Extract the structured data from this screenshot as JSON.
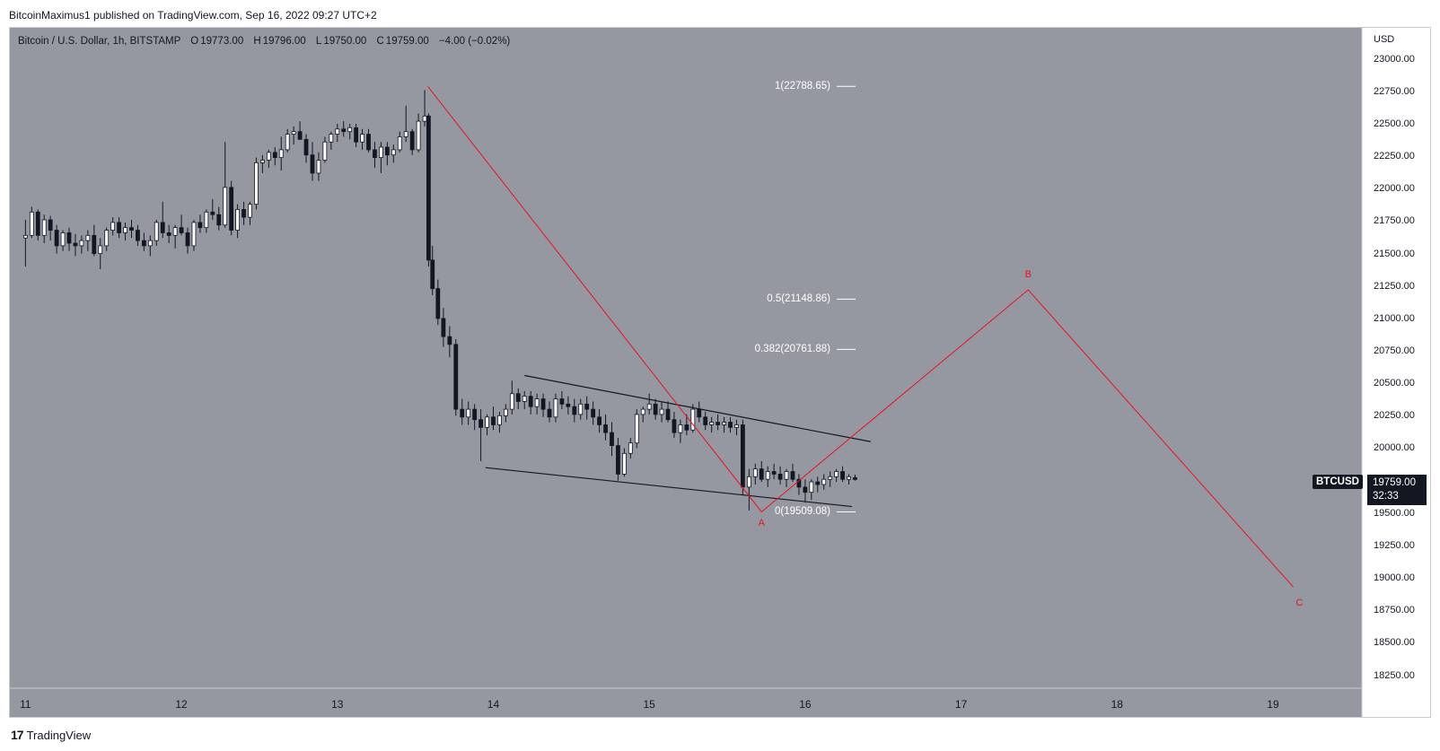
{
  "header": {
    "published_line": "BitcoinMaximus1 published on TradingView.com, Sep 16, 2022 09:27 UTC+2"
  },
  "legend": {
    "symbol_desc": "Bitcoin / U.S. Dollar, 1h, BITSTAMP",
    "o_label": "O",
    "o_value": "19773.00",
    "h_label": "H",
    "h_value": "19796.00",
    "l_label": "L",
    "l_value": "19750.00",
    "c_label": "C",
    "c_value": "19759.00",
    "change": "−4.00 (−0.02%)"
  },
  "colors": {
    "background": "#9598a1",
    "line": "#e8141f",
    "fib": "#ffffff",
    "candle_up": "#ffffff",
    "candle_down": "#131722"
  },
  "chart_data": {
    "type": "candlestick",
    "y_axis": {
      "unit": "USD",
      "ticks": [
        "23000.00",
        "22750.00",
        "22500.00",
        "22250.00",
        "22000.00",
        "21750.00",
        "21500.00",
        "21250.00",
        "21000.00",
        "20750.00",
        "20500.00",
        "20250.00",
        "20000.00",
        "19750.00",
        "19500.00",
        "19250.00",
        "19000.00",
        "18750.00",
        "18500.00",
        "18250.00"
      ],
      "range": [
        18150,
        23240
      ]
    },
    "x_axis": {
      "ticks": [
        "11",
        "12",
        "13",
        "14",
        "15",
        "16",
        "17",
        "18",
        "19"
      ],
      "range_days": [
        10.9,
        19.57
      ]
    },
    "last_price": {
      "symbol": "BTCUSD",
      "price": "19759.00",
      "countdown": "32:33"
    },
    "fib_levels": [
      {
        "ratio": 1,
        "label": "1(22788.65)",
        "price": 22788.65
      },
      {
        "ratio": 0.5,
        "label": "0.5(21148.86)",
        "price": 21148.86
      },
      {
        "ratio": 0.382,
        "label": "0.382(20761.88)",
        "price": 20761.88
      },
      {
        "ratio": 0,
        "label": "0(19509.08)",
        "price": 19509.08
      }
    ],
    "wave_path": [
      {
        "day": 13.58,
        "price": 22788
      },
      {
        "day": 15.72,
        "price": 19509
      },
      {
        "day": 17.43,
        "price": 21220
      },
      {
        "day": 19.13,
        "price": 18930
      }
    ],
    "wave_labels": [
      {
        "text": "A",
        "day": 15.72,
        "price": 19420
      },
      {
        "text": "B",
        "day": 17.43,
        "price": 21340
      },
      {
        "text": "C",
        "day": 19.17,
        "price": 18810
      }
    ],
    "channel_lines": [
      {
        "from": {
          "day": 14.2,
          "price": 20560
        },
        "to": {
          "day": 16.42,
          "price": 20050
        }
      },
      {
        "from": {
          "day": 13.95,
          "price": 19850
        },
        "to": {
          "day": 16.3,
          "price": 19550
        }
      }
    ],
    "candles": [
      [
        11.0,
        21620,
        21760,
        21400,
        21640
      ],
      [
        11.04,
        21640,
        21860,
        21620,
        21820
      ],
      [
        11.08,
        21820,
        21840,
        21600,
        21640
      ],
      [
        11.12,
        21640,
        21800,
        21580,
        21760
      ],
      [
        11.16,
        21760,
        21790,
        21600,
        21680
      ],
      [
        11.2,
        21680,
        21720,
        21500,
        21560
      ],
      [
        11.24,
        21560,
        21680,
        21520,
        21660
      ],
      [
        11.28,
        21660,
        21700,
        21520,
        21580
      ],
      [
        11.32,
        21580,
        21650,
        21480,
        21560
      ],
      [
        11.36,
        21560,
        21640,
        21500,
        21600
      ],
      [
        11.4,
        21600,
        21680,
        21520,
        21640
      ],
      [
        11.44,
        21640,
        21720,
        21480,
        21500
      ],
      [
        11.48,
        21500,
        21620,
        21380,
        21560
      ],
      [
        11.52,
        21560,
        21700,
        21520,
        21680
      ],
      [
        11.56,
        21680,
        21780,
        21640,
        21740
      ],
      [
        11.6,
        21740,
        21780,
        21620,
        21660
      ],
      [
        11.64,
        21660,
        21740,
        21600,
        21700
      ],
      [
        11.68,
        21700,
        21760,
        21620,
        21680
      ],
      [
        11.72,
        21680,
        21720,
        21560,
        21600
      ],
      [
        11.76,
        21600,
        21660,
        21520,
        21560
      ],
      [
        11.8,
        21560,
        21640,
        21480,
        21600
      ],
      [
        11.84,
        21600,
        21760,
        21560,
        21740
      ],
      [
        11.88,
        21740,
        21900,
        21620,
        21660
      ],
      [
        11.92,
        21660,
        21720,
        21580,
        21640
      ],
      [
        11.96,
        21640,
        21720,
        21540,
        21700
      ],
      [
        12.0,
        21700,
        21800,
        21640,
        21660
      ],
      [
        12.04,
        21660,
        21700,
        21500,
        21560
      ],
      [
        12.08,
        21560,
        21760,
        21520,
        21740
      ],
      [
        12.12,
        21740,
        21800,
        21660,
        21700
      ],
      [
        12.16,
        21700,
        21840,
        21660,
        21820
      ],
      [
        12.2,
        21820,
        21920,
        21760,
        21800
      ],
      [
        12.24,
        21800,
        21860,
        21680,
        21720
      ],
      [
        12.28,
        21720,
        22360,
        21700,
        22010
      ],
      [
        12.32,
        22010,
        22060,
        21640,
        21680
      ],
      [
        12.36,
        21680,
        21880,
        21620,
        21840
      ],
      [
        12.4,
        21840,
        21900,
        21720,
        21780
      ],
      [
        12.44,
        21780,
        21900,
        21720,
        21880
      ],
      [
        12.48,
        21880,
        22240,
        21840,
        22200
      ],
      [
        12.52,
        22200,
        22260,
        22120,
        22220
      ],
      [
        12.56,
        22220,
        22300,
        22160,
        22280
      ],
      [
        12.6,
        22280,
        22320,
        22180,
        22240
      ],
      [
        12.64,
        22240,
        22400,
        22140,
        22300
      ],
      [
        12.68,
        22300,
        22460,
        22280,
        22420
      ],
      [
        12.72,
        22420,
        22480,
        22340,
        22440
      ],
      [
        12.76,
        22440,
        22520,
        22400,
        22380
      ],
      [
        12.8,
        22380,
        22420,
        22200,
        22260
      ],
      [
        12.84,
        22260,
        22360,
        22060,
        22120
      ],
      [
        12.88,
        22120,
        22280,
        22060,
        22220
      ],
      [
        12.92,
        22220,
        22400,
        22200,
        22360
      ],
      [
        12.96,
        22360,
        22440,
        22300,
        22420
      ],
      [
        13.0,
        22420,
        22500,
        22360,
        22460
      ],
      [
        13.04,
        22460,
        22520,
        22400,
        22440
      ],
      [
        13.08,
        22440,
        22500,
        22380,
        22470
      ],
      [
        13.12,
        22470,
        22500,
        22320,
        22360
      ],
      [
        13.16,
        22360,
        22460,
        22300,
        22420
      ],
      [
        13.2,
        22420,
        22460,
        22280,
        22300
      ],
      [
        13.24,
        22300,
        22360,
        22160,
        22240
      ],
      [
        13.28,
        22240,
        22360,
        22120,
        22320
      ],
      [
        13.32,
        22320,
        22360,
        22180,
        22260
      ],
      [
        13.36,
        22260,
        22340,
        22200,
        22300
      ],
      [
        13.4,
        22300,
        22440,
        22280,
        22400
      ],
      [
        13.44,
        22400,
        22640,
        22360,
        22440
      ],
      [
        13.48,
        22440,
        22460,
        22260,
        22300
      ],
      [
        13.52,
        22300,
        22580,
        22280,
        22520
      ],
      [
        13.56,
        22520,
        22760,
        22480,
        22560
      ],
      [
        13.585,
        22560,
        22580,
        21400,
        21450
      ],
      [
        13.61,
        21450,
        21560,
        21180,
        21230
      ],
      [
        13.645,
        21230,
        21300,
        20950,
        21000
      ],
      [
        13.68,
        21000,
        21080,
        20780,
        20860
      ],
      [
        13.72,
        20860,
        20940,
        20700,
        20800
      ],
      [
        13.76,
        20800,
        20840,
        20250,
        20300
      ],
      [
        13.8,
        20300,
        20380,
        20180,
        20240
      ],
      [
        13.84,
        20240,
        20360,
        20180,
        20300
      ],
      [
        13.88,
        20300,
        20340,
        20140,
        20220
      ],
      [
        13.92,
        20220,
        20300,
        19900,
        20160
      ],
      [
        13.96,
        20160,
        20260,
        20100,
        20240
      ],
      [
        14.0,
        20240,
        20320,
        20140,
        20180
      ],
      [
        14.04,
        20180,
        20280,
        20120,
        20250
      ],
      [
        14.08,
        20250,
        20340,
        20200,
        20300
      ],
      [
        14.12,
        20300,
        20520,
        20260,
        20420
      ],
      [
        14.16,
        20420,
        20460,
        20300,
        20360
      ],
      [
        14.2,
        20360,
        20440,
        20300,
        20400
      ],
      [
        14.24,
        20400,
        20440,
        20260,
        20320
      ],
      [
        14.28,
        20320,
        20420,
        20260,
        20380
      ],
      [
        14.32,
        20380,
        20420,
        20240,
        20300
      ],
      [
        14.36,
        20300,
        20360,
        20200,
        20240
      ],
      [
        14.4,
        20240,
        20420,
        20200,
        20380
      ],
      [
        14.44,
        20380,
        20440,
        20300,
        20340
      ],
      [
        14.48,
        20340,
        20400,
        20260,
        20320
      ],
      [
        14.52,
        20320,
        20380,
        20200,
        20260
      ],
      [
        14.56,
        20260,
        20380,
        20220,
        20340
      ],
      [
        14.6,
        20340,
        20400,
        20220,
        20300
      ],
      [
        14.64,
        20300,
        20360,
        20180,
        20240
      ],
      [
        14.68,
        20240,
        20300,
        20120,
        20180
      ],
      [
        14.72,
        20180,
        20260,
        20060,
        20120
      ],
      [
        14.76,
        20120,
        20200,
        19940,
        20020
      ],
      [
        14.8,
        20020,
        20080,
        19750,
        19800
      ],
      [
        14.84,
        19800,
        20000,
        19780,
        19960
      ],
      [
        14.88,
        19960,
        20080,
        19920,
        20040
      ],
      [
        14.92,
        20040,
        20300,
        20000,
        20260
      ],
      [
        14.96,
        20260,
        20320,
        20200,
        20300
      ],
      [
        15.0,
        20300,
        20420,
        20260,
        20340
      ],
      [
        15.04,
        20340,
        20380,
        20220,
        20260
      ],
      [
        15.08,
        20260,
        20360,
        20200,
        20300
      ],
      [
        15.12,
        20300,
        20360,
        20200,
        20220
      ],
      [
        15.16,
        20220,
        20280,
        20080,
        20120
      ],
      [
        15.2,
        20120,
        20220,
        20040,
        20180
      ],
      [
        15.24,
        20180,
        20260,
        20100,
        20140
      ],
      [
        15.28,
        20140,
        20340,
        20120,
        20300
      ],
      [
        15.32,
        20300,
        20360,
        20200,
        20240
      ],
      [
        15.36,
        20240,
        20280,
        20140,
        20180
      ],
      [
        15.4,
        20180,
        20240,
        20120,
        20200
      ],
      [
        15.44,
        20200,
        20260,
        20140,
        20180
      ],
      [
        15.48,
        20180,
        20240,
        20120,
        20200
      ],
      [
        15.52,
        20200,
        20240,
        20120,
        20160
      ],
      [
        15.56,
        20160,
        20220,
        20100,
        20180
      ],
      [
        15.6,
        20180,
        20220,
        19640,
        19700
      ],
      [
        15.64,
        19700,
        19840,
        19520,
        19780
      ],
      [
        15.68,
        19780,
        19880,
        19720,
        19840
      ],
      [
        15.72,
        19840,
        19900,
        19740,
        19760
      ],
      [
        15.76,
        19760,
        19860,
        19700,
        19820
      ],
      [
        15.8,
        19820,
        19880,
        19760,
        19800
      ],
      [
        15.84,
        19800,
        19860,
        19720,
        19760
      ],
      [
        15.88,
        19760,
        19840,
        19700,
        19820
      ],
      [
        15.92,
        19820,
        19880,
        19740,
        19760
      ],
      [
        15.96,
        19760,
        19800,
        19640,
        19700
      ],
      [
        16.0,
        19700,
        19760,
        19580,
        19660
      ],
      [
        16.04,
        19660,
        19760,
        19600,
        19740
      ],
      [
        16.08,
        19740,
        19780,
        19660,
        19720
      ],
      [
        16.12,
        19720,
        19800,
        19680,
        19760
      ],
      [
        16.16,
        19760,
        19820,
        19700,
        19780
      ],
      [
        16.2,
        19780,
        19840,
        19740,
        19820
      ],
      [
        16.24,
        19820,
        19860,
        19740,
        19760
      ],
      [
        16.28,
        19760,
        19800,
        19720,
        19780
      ],
      [
        16.32,
        19773,
        19796,
        19750,
        19759
      ]
    ]
  }
}
